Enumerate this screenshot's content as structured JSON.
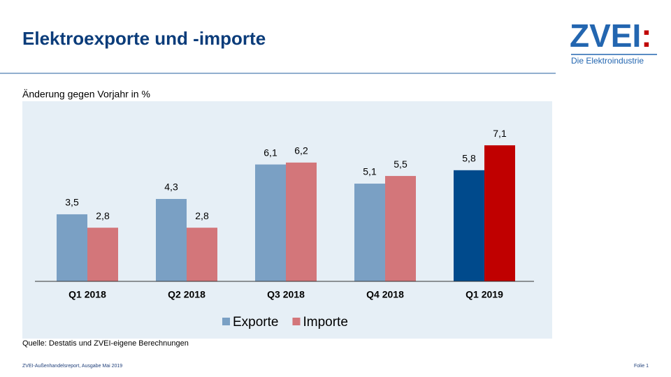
{
  "header": {
    "title": "Elektroexporte und -importe",
    "logo": {
      "name": "ZVEI",
      "mark": ":",
      "tagline": "Die Elektroindustrie"
    }
  },
  "chart_data": {
    "type": "bar",
    "subtitle": "Änderung gegen Vorjahr in %",
    "categories": [
      "Q1 2018",
      "Q2 2018",
      "Q3 2018",
      "Q4 2018",
      "Q1 2019"
    ],
    "series": [
      {
        "name": "Exporte",
        "color": "#7aa0c4",
        "colors": [
          "#7aa0c4",
          "#7aa0c4",
          "#7aa0c4",
          "#7aa0c4",
          "#004a8c"
        ],
        "values": [
          3.5,
          4.3,
          6.1,
          5.1,
          5.8
        ],
        "value_labels": [
          "3,5",
          "4,3",
          "6,1",
          "5,1",
          "5,8"
        ]
      },
      {
        "name": "Importe",
        "color": "#d3767a",
        "colors": [
          "#d3767a",
          "#d3767a",
          "#d3767a",
          "#d3767a",
          "#c00000"
        ],
        "values": [
          2.8,
          2.8,
          6.2,
          5.5,
          7.1
        ],
        "value_labels": [
          "2,8",
          "2,8",
          "6,2",
          "5,5",
          "7,1"
        ]
      }
    ],
    "ylim": [
      0,
      9
    ],
    "legend": "bottom",
    "source": "Quelle: Destatis und ZVEI-eigene Berechnungen"
  },
  "footer": {
    "report": "ZVEI-Außenhandelsreport,   Ausgabe Mai 2019",
    "slide": "Folie 1"
  }
}
